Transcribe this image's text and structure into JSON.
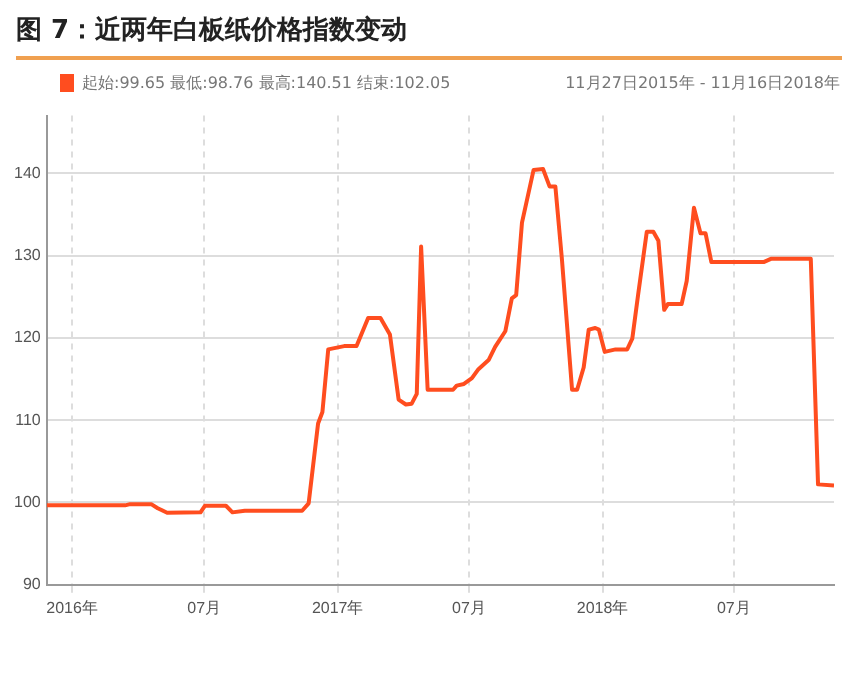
{
  "chart_data": {
    "type": "line",
    "title": "图 7：近两年白板纸价格指数变动",
    "annotations": [
      "起始:99.65 最低:98.76 最高:140.51 结束:102.05",
      "11月27日2015年 - 11月16日2018年"
    ],
    "x": [
      "2015-11-27",
      "2016-03-14",
      "2016-03-21",
      "2016-04-19",
      "2016-04-28",
      "2016-05-11",
      "2016-06-26",
      "2016-07-02",
      "2016-07-31",
      "2016-08-09",
      "2016-08-26",
      "2016-11-13",
      "2016-11-22",
      "2016-12-05",
      "2016-12-11",
      "2016-12-19",
      "2017-01-10",
      "2017-01-27",
      "2017-02-12",
      "2017-03-01",
      "2017-03-14",
      "2017-03-26",
      "2017-04-05",
      "2017-04-13",
      "2017-04-20",
      "2017-04-26",
      "2017-05-05",
      "2017-06-09",
      "2017-06-14",
      "2017-06-24",
      "2017-07-05",
      "2017-07-14",
      "2017-07-28",
      "2017-08-06",
      "2017-08-20",
      "2017-08-29",
      "2017-09-04",
      "2017-09-12",
      "2017-09-28",
      "2017-10-11",
      "2017-10-20",
      "2017-10-28",
      "2017-11-06",
      "2017-11-20",
      "2017-11-27",
      "2017-12-06",
      "2017-12-13",
      "2017-12-22",
      "2017-12-27",
      "2018-01-04",
      "2018-01-19",
      "2018-02-04",
      "2018-02-11",
      "2018-02-19",
      "2018-03-03",
      "2018-03-12",
      "2018-03-19",
      "2018-03-27",
      "2018-04-01",
      "2018-04-20",
      "2018-04-27",
      "2018-05-07",
      "2018-05-16",
      "2018-05-23",
      "2018-05-31",
      "2018-08-11",
      "2018-08-21",
      "2018-10-15",
      "2018-10-25",
      "2018-11-16"
    ],
    "series": [
      {
        "color": "#ff4d1f",
        "values": [
          99.65,
          99.65,
          99.8,
          99.8,
          99.3,
          98.76,
          98.8,
          99.6,
          99.6,
          98.8,
          99.0,
          99.0,
          99.9,
          109.6,
          111,
          118.6,
          119.0,
          119.0,
          122.4,
          122.4,
          120.4,
          112.5,
          111.9,
          112.0,
          113.2,
          131.1,
          113.7,
          113.7,
          114.2,
          114.4,
          115.1,
          116.2,
          117.3,
          118.9,
          120.8,
          124.8,
          125.2,
          134.0,
          140.4,
          140.51,
          138.4,
          138.4,
          129.6,
          113.7,
          113.7,
          116.4,
          121.0,
          121.2,
          121.0,
          118.3,
          118.6,
          118.6,
          119.9,
          125.2,
          132.9,
          132.9,
          131.8,
          123.4,
          124.1,
          124.1,
          126.9,
          135.8,
          132.7,
          132.7,
          129.2,
          129.2,
          129.6,
          129.6,
          102.2,
          102.05
        ]
      }
    ],
    "xlim": [
      "2015-11-27",
      "2018-11-16"
    ],
    "xticks": [
      {
        "value": "2016-01-01",
        "label": "2016年"
      },
      {
        "value": "2016-07-01",
        "label": "07月"
      },
      {
        "value": "2017-01-01",
        "label": "2017年"
      },
      {
        "value": "2017-07-01",
        "label": "07月"
      },
      {
        "value": "2018-01-01",
        "label": "2018年"
      },
      {
        "value": "2018-07-01",
        "label": "07月"
      }
    ],
    "ylim": [
      90,
      147
    ],
    "yticks": [
      90,
      100,
      110,
      120,
      130,
      140
    ],
    "grid": true,
    "legend": false,
    "marker": "none",
    "line_style": "solid"
  }
}
